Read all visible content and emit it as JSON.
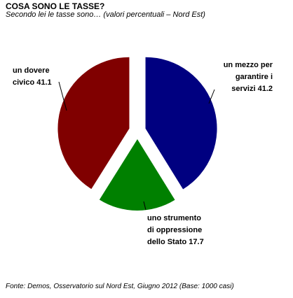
{
  "title": "COSA SONO LE TASSE?",
  "subtitle": "Secondo lei le tasse sono… (valori percentuali – Nord Est)",
  "source": "Fonte: Demos, Osservatorio sul Nord Est, Giugno 2012 (Base: 1000 casi)",
  "chart_data": {
    "type": "pie",
    "title": "COSA SONO LE TASSE?",
    "subtitle": "Secondo lei le tasse sono… (valori percentuali – Nord Est)",
    "exploded": true,
    "slices": [
      {
        "label_lines": [
          "un mezzo per",
          "garantire i",
          "servizi 41.2"
        ],
        "value": 41.2,
        "color": "#000080"
      },
      {
        "label_lines": [
          "uno strumento",
          "di oppressione",
          "dello Stato 17.7"
        ],
        "value": 17.7,
        "color": "#008000"
      },
      {
        "label_lines": [
          "un dovere",
          "civico 41.1"
        ],
        "value": 41.1,
        "color": "#800000"
      }
    ]
  }
}
